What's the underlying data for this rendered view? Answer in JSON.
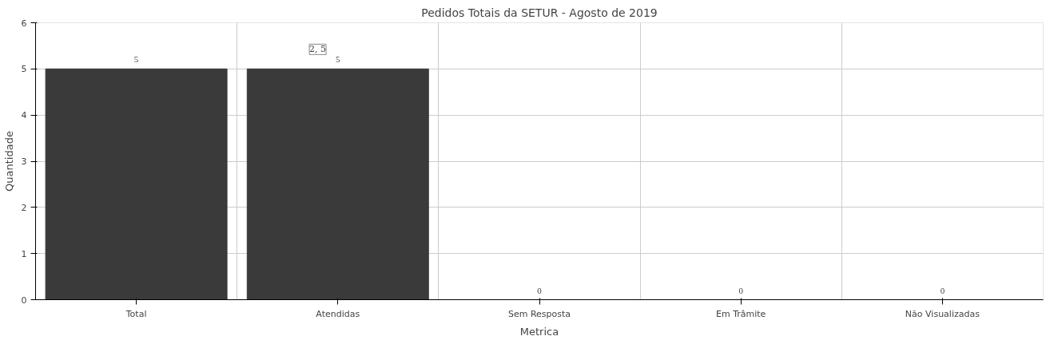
{
  "chart_data": {
    "type": "bar",
    "title": "Pedidos Totais da SETUR - Agosto de 2019",
    "xlabel": "Metrica",
    "ylabel": "Quantidade",
    "categories": [
      "Total",
      "Atendidas",
      "Sem Resposta",
      "Em Trâmite",
      "Não Visualizadas"
    ],
    "values": [
      5,
      5,
      0,
      0,
      0
    ],
    "color": "#3a3a3a",
    "ylim": [
      0,
      6
    ],
    "yticks": [
      0,
      1,
      2,
      3,
      4,
      5,
      6
    ],
    "grid": true,
    "data_labels": true,
    "annotations": [
      {
        "text": "2, 5",
        "x": "Atendidas",
        "y": 5
      }
    ]
  }
}
